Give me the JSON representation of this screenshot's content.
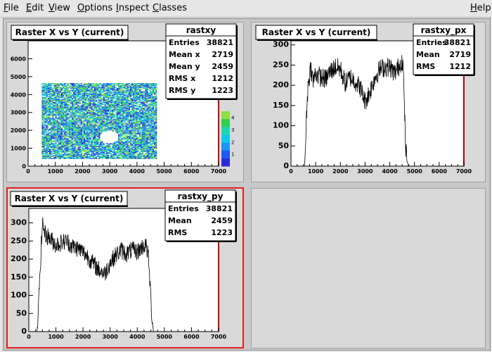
{
  "menubar": {
    "items": [
      {
        "label": "File",
        "acc": "F",
        "rest": "ile"
      },
      {
        "label": "Edit",
        "acc": "E",
        "rest": "dit"
      },
      {
        "label": "View",
        "acc": "V",
        "rest": "iew"
      },
      {
        "label": "Options",
        "acc": "O",
        "rest": "ptions"
      },
      {
        "label": "Inspect",
        "acc": "I",
        "rest": "nspect"
      },
      {
        "label": "Classes",
        "acc": "C",
        "rest": "lasses"
      }
    ],
    "help": {
      "label": "Help",
      "acc": "H",
      "rest": "elp"
    }
  },
  "colors": {
    "pad_background": "#d9d9d9",
    "frame_background": "#ffffff",
    "active_pad_border": "#e02020",
    "histogram_line": "#000000",
    "frame_edge_red": "#c00000"
  },
  "chart_data": [
    {
      "type": "heatmap",
      "title": "Raster X vs Y (current)",
      "stats": {
        "name": "rastxy",
        "rows": [
          {
            "label": "Entries",
            "value": "38821"
          },
          {
            "label": "Mean x",
            "value": "2719"
          },
          {
            "label": "Mean y",
            "value": "2459"
          },
          {
            "label": "RMS x",
            "value": "1212"
          },
          {
            "label": "RMS y",
            "value": "1223"
          }
        ]
      },
      "xlim": [
        0,
        7000
      ],
      "ylim": [
        0,
        7000
      ],
      "xticks": [
        "0",
        "1000",
        "2000",
        "3000",
        "4000",
        "5000",
        "6000",
        "7000"
      ],
      "yticks": [
        "0",
        "1000",
        "2000",
        "3000",
        "4000",
        "5000",
        "6000"
      ],
      "filled_region": {
        "x": [
          500,
          4700
        ],
        "y": [
          400,
          4600
        ]
      },
      "hole": {
        "x": 2950,
        "y": 1600,
        "r": 350
      },
      "palette": [
        "#2a2ad8",
        "#1e5af0",
        "#1a96f0",
        "#10c8e8",
        "#20d8b0",
        "#30d050",
        "#8ee040"
      ],
      "z_ticks": [
        "1",
        "2",
        "3",
        "4"
      ]
    },
    {
      "type": "line",
      "title": "Raster X vs Y (current)",
      "stats": {
        "name": "rastxy_px",
        "rows": [
          {
            "label": "Entries",
            "value": "38821"
          },
          {
            "label": "Mean",
            "value": "2719"
          },
          {
            "label": "RMS",
            "value": "1212"
          }
        ]
      },
      "xlim": [
        0,
        7000
      ],
      "ylim": [
        0,
        310
      ],
      "xticks": [
        "0",
        "1000",
        "2000",
        "3000",
        "4000",
        "5000",
        "6000",
        "7000"
      ],
      "yticks": [
        "0",
        "50",
        "100",
        "150",
        "200",
        "250",
        "300"
      ],
      "x": [
        550,
        600,
        650,
        700,
        800,
        900,
        1000,
        1200,
        1400,
        1600,
        1800,
        2000,
        2200,
        2400,
        2600,
        2800,
        3000,
        3200,
        3400,
        3600,
        3800,
        4000,
        4200,
        4400,
        4500,
        4550,
        4600,
        4650,
        4700,
        4800,
        4900
      ],
      "y": [
        0,
        70,
        160,
        205,
        245,
        210,
        230,
        220,
        215,
        235,
        245,
        240,
        205,
        220,
        210,
        195,
        160,
        185,
        220,
        240,
        245,
        245,
        230,
        250,
        265,
        235,
        125,
        40,
        10,
        0,
        0
      ]
    },
    {
      "type": "line",
      "title": "Raster X vs Y (current)",
      "stats": {
        "name": "rastxy_py",
        "rows": [
          {
            "label": "Entries",
            "value": "38821"
          },
          {
            "label": "Mean",
            "value": "2459"
          },
          {
            "label": "RMS",
            "value": "1223"
          }
        ]
      },
      "xlim": [
        0,
        7000
      ],
      "ylim": [
        0,
        340
      ],
      "xticks": [
        "0",
        "1000",
        "2000",
        "3000",
        "4000",
        "5000",
        "6000",
        "7000"
      ],
      "yticks": [
        "0",
        "50",
        "100",
        "150",
        "200",
        "250",
        "300"
      ],
      "x": [
        300,
        350,
        400,
        450,
        500,
        600,
        800,
        1000,
        1200,
        1400,
        1600,
        1800,
        2000,
        2200,
        2400,
        2600,
        2800,
        3000,
        3200,
        3400,
        3600,
        3800,
        4000,
        4200,
        4300,
        4400,
        4450,
        4500,
        4550,
        4600,
        4700
      ],
      "y": [
        0,
        50,
        150,
        220,
        300,
        270,
        255,
        240,
        245,
        250,
        235,
        230,
        220,
        205,
        185,
        170,
        160,
        190,
        210,
        225,
        215,
        225,
        220,
        235,
        240,
        215,
        160,
        90,
        30,
        0,
        0
      ]
    }
  ]
}
